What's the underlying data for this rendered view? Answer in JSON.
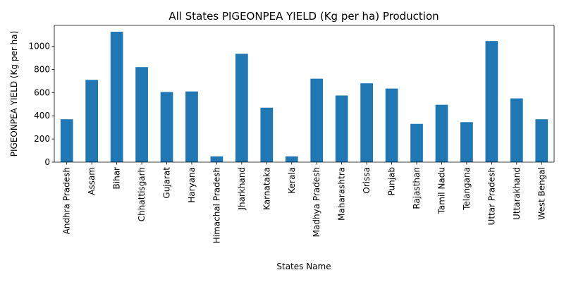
{
  "chart_data": {
    "type": "bar",
    "title": "All States PIGEONPEA YIELD (Kg per ha) Production",
    "xlabel": "States Name",
    "ylabel": "PIGEONPEA YIELD (Kg per ha)",
    "ylim": [
      0,
      1180
    ],
    "yticks": [
      0,
      200,
      400,
      600,
      800,
      1000
    ],
    "grid": false,
    "legend": "none",
    "bar_color": "#1f77b4",
    "categories": [
      "Andhra Pradesh",
      "Assam",
      "Bihar",
      "Chhattisgarh",
      "Gujarat",
      "Haryana",
      "Himachal Pradesh",
      "Jharkhand",
      "Karnataka",
      "Kerala",
      "Madhya Pradesh",
      "Maharashtra",
      "Orissa",
      "Punjab",
      "Rajasthan",
      "Tamil Nadu",
      "Telangana",
      "Uttar Pradesh",
      "Uttarakhand",
      "West Bengal"
    ],
    "values": [
      370,
      710,
      1125,
      820,
      605,
      610,
      50,
      935,
      470,
      50,
      720,
      575,
      680,
      635,
      330,
      495,
      345,
      1045,
      550,
      370
    ]
  }
}
